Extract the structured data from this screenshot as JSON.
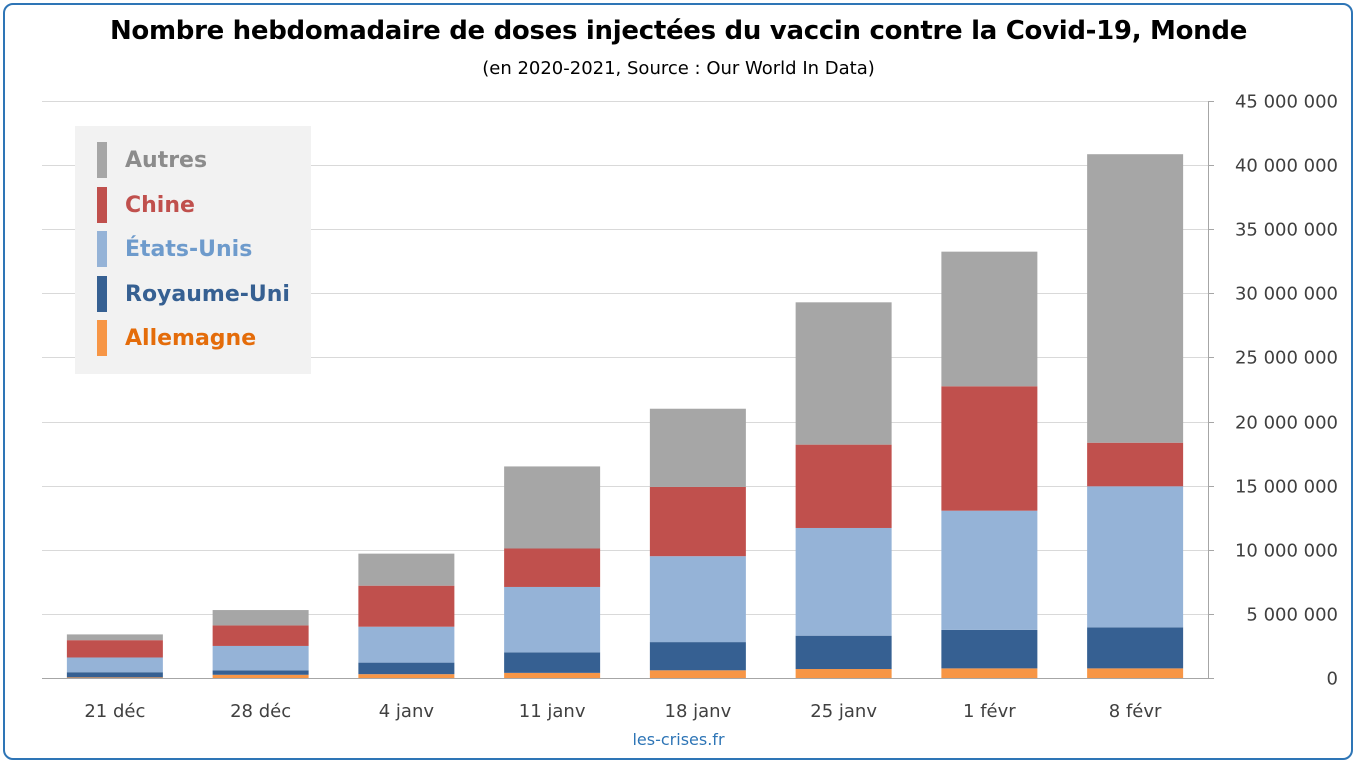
{
  "page": {
    "title": "Nombre hebdomadaire de doses injectées du vaccin contre la Covid-19, Monde",
    "subtitle": "(en 2020-2021, Source : Our World In Data)",
    "source_credit": "les-crises.fr",
    "frame_color": "#2E75B6"
  },
  "chart_data": {
    "type": "bar",
    "stacked": true,
    "title": "Nombre hebdomadaire de doses injectées du vaccin contre la Covid-19, Monde",
    "subtitle": "(en 2020-2021, Source : Our World In Data)",
    "categories": [
      "21 déc",
      "28 déc",
      "4 janv",
      "11 janv",
      "18 janv",
      "25 janv",
      "1 févr",
      "8 févr"
    ],
    "ylim": [
      0,
      45000000
    ],
    "y_ticks": [
      0,
      5000000,
      10000000,
      15000000,
      20000000,
      25000000,
      30000000,
      35000000,
      40000000,
      45000000
    ],
    "y_tick_labels": [
      "0",
      "5 000 000",
      "10 000 000",
      "15 000 000",
      "20 000 000",
      "25 000 000",
      "30 000 000",
      "35 000 000",
      "40 000 000",
      "45 000 000"
    ],
    "y_axis_position": "right",
    "grid": true,
    "legend_position": "top-left",
    "series": [
      {
        "name": "Allemagne",
        "color": "#F79646",
        "label_color": "#E46C0A",
        "values": [
          50000,
          250000,
          300000,
          400000,
          600000,
          700000,
          750000,
          750000
        ]
      },
      {
        "name": "Royaume-Uni",
        "color": "#366092",
        "label_color": "#366092",
        "values": [
          400000,
          350000,
          900000,
          1600000,
          2200000,
          2600000,
          3000000,
          3200000
        ]
      },
      {
        "name": "États-Unis",
        "color": "#95B3D7",
        "label_color": "#6E9BCC",
        "values": [
          1150000,
          1900000,
          2800000,
          5100000,
          6700000,
          8400000,
          9300000,
          11000000
        ]
      },
      {
        "name": "Chine",
        "color": "#C0504D",
        "label_color": "#C0504D",
        "values": [
          1350000,
          1600000,
          3200000,
          3000000,
          5400000,
          6500000,
          9700000,
          3400000
        ]
      },
      {
        "name": "Autres",
        "color": "#A6A6A6",
        "label_color": "#8C8C8C",
        "values": [
          450000,
          1200000,
          2500000,
          6400000,
          6100000,
          11100000,
          10500000,
          22500000
        ]
      }
    ],
    "legend_order": [
      "Autres",
      "Chine",
      "États-Unis",
      "Royaume-Uni",
      "Allemagne"
    ]
  }
}
